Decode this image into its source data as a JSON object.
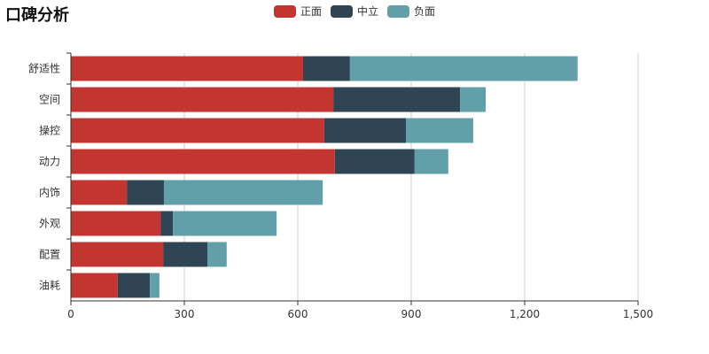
{
  "chart_data": {
    "type": "bar",
    "orientation": "horizontal",
    "stacked": true,
    "title": "口碑分析",
    "categories": [
      "舒适性",
      "空间",
      "操控",
      "动力",
      "内饰",
      "外观",
      "配置",
      "油耗"
    ],
    "series": [
      {
        "name": "正面",
        "color": "#c23531",
        "values": [
          614,
          694,
          670,
          698,
          148,
          237,
          244,
          124
        ]
      },
      {
        "name": "中立",
        "color": "#2f4554",
        "values": [
          124,
          335,
          216,
          211,
          98,
          33,
          117,
          85
        ]
      },
      {
        "name": "负面",
        "color": "#61a0a8",
        "values": [
          602,
          68,
          178,
          89,
          420,
          274,
          51,
          25
        ]
      }
    ],
    "xlim": [
      0,
      1500
    ],
    "xticks": [
      "0",
      "300",
      "600",
      "900",
      "1,200",
      "1,500"
    ],
    "grid": "vertical",
    "legend": "top-center"
  }
}
